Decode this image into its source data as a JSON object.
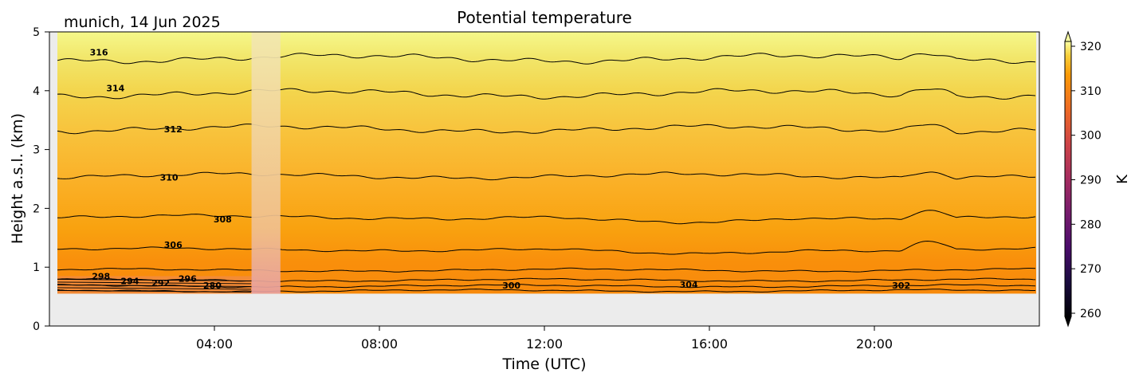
{
  "chart_data": {
    "type": "heatmap",
    "title": "Potential temperature",
    "location_date": "munich, 14 Jun 2025",
    "xlabel": "Time (UTC)",
    "ylabel": "Height a.s.l. (km)",
    "x_range_hours": [
      0,
      24
    ],
    "xticks": [
      {
        "value": 4,
        "label": "04:00"
      },
      {
        "value": 8,
        "label": "08:00"
      },
      {
        "value": 12,
        "label": "12:00"
      },
      {
        "value": 16,
        "label": "16:00"
      },
      {
        "value": 20,
        "label": "20:00"
      }
    ],
    "ylim": [
      0,
      5
    ],
    "yticks": [
      {
        "value": 0,
        "label": "0"
      },
      {
        "value": 1,
        "label": "1"
      },
      {
        "value": 2,
        "label": "2"
      },
      {
        "value": 3,
        "label": "3"
      },
      {
        "value": 4,
        "label": "4"
      },
      {
        "value": 5,
        "label": "5"
      }
    ],
    "colorbar": {
      "label": "K",
      "colormap": "inferno",
      "range": [
        260,
        320
      ],
      "extend": "both",
      "ticks": [
        {
          "value": 260,
          "label": "260"
        },
        {
          "value": 270,
          "label": "270"
        },
        {
          "value": 280,
          "label": "280"
        },
        {
          "value": 290,
          "label": "290"
        },
        {
          "value": 300,
          "label": "300"
        },
        {
          "value": 310,
          "label": "310"
        },
        {
          "value": 320,
          "label": "320"
        }
      ]
    },
    "surface_height_km": 0.55,
    "data_gap_hours": [
      4.9,
      5.6
    ],
    "contour_levels": [
      {
        "level": 316,
        "height_km": 4.55
      },
      {
        "level": 314,
        "height_km": 3.95
      },
      {
        "level": 312,
        "height_km": 3.35
      },
      {
        "level": 310,
        "height_km": 2.55
      },
      {
        "level": 308,
        "height_km": 1.85
      },
      {
        "level": 306,
        "height_km": 1.3
      },
      {
        "level": 304,
        "height_km": 0.95
      },
      {
        "level": 302,
        "height_km": 0.78
      },
      {
        "level": 300,
        "height_km": 0.68
      },
      {
        "level": 298,
        "height_km": 0.6
      }
    ],
    "contour_labels": [
      {
        "text": "316",
        "x": 1.2,
        "y": 4.6
      },
      {
        "text": "314",
        "x": 1.6,
        "y": 3.99
      },
      {
        "text": "312",
        "x": 3.0,
        "y": 3.29
      },
      {
        "text": "310",
        "x": 2.9,
        "y": 2.47
      },
      {
        "text": "308",
        "x": 4.2,
        "y": 1.76
      },
      {
        "text": "306",
        "x": 3.0,
        "y": 1.33
      },
      {
        "text": "298",
        "x": 1.25,
        "y": 0.79
      },
      {
        "text": "294",
        "x": 1.95,
        "y": 0.71
      },
      {
        "text": "292",
        "x": 2.7,
        "y": 0.68
      },
      {
        "text": "296",
        "x": 3.35,
        "y": 0.75
      },
      {
        "text": "280",
        "x": 3.95,
        "y": 0.64
      },
      {
        "text": "300",
        "x": 11.2,
        "y": 0.64
      },
      {
        "text": "304",
        "x": 15.5,
        "y": 0.65
      },
      {
        "text": "302",
        "x": 20.65,
        "y": 0.64
      }
    ]
  }
}
